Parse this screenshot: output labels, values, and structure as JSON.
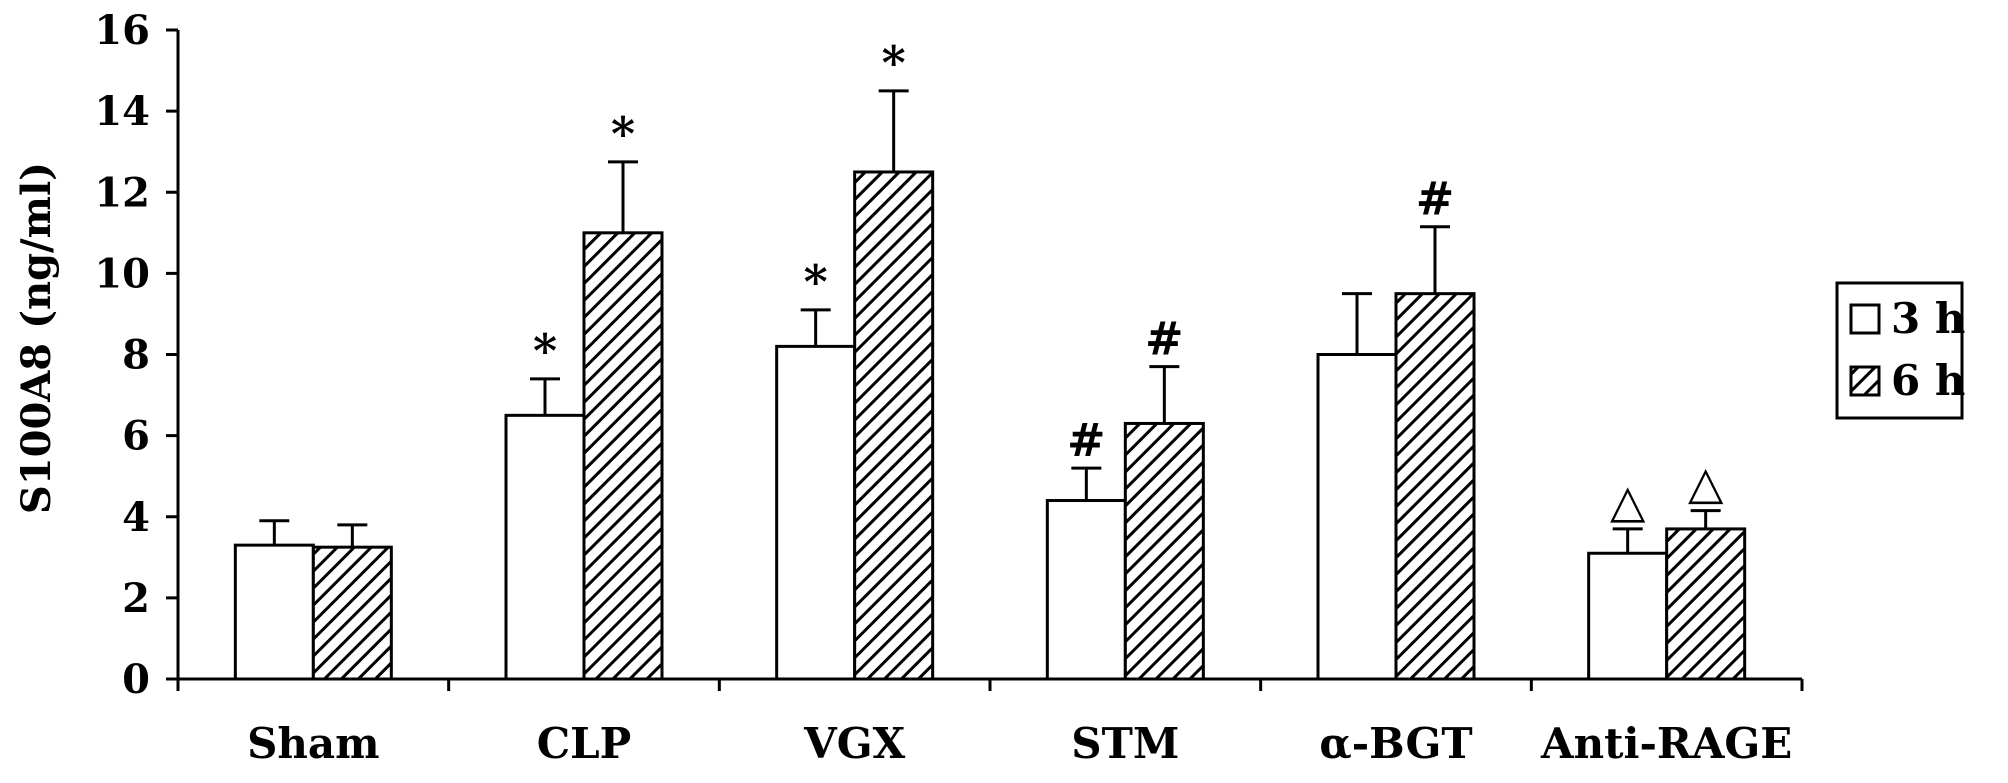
{
  "chart_data": {
    "type": "bar",
    "title": "",
    "xlabel": "",
    "ylabel": "S100A8 (ng/ml)",
    "ylim": [
      0,
      16
    ],
    "yticks": [
      0,
      2,
      4,
      6,
      8,
      10,
      12,
      14,
      16
    ],
    "grid": false,
    "legend_position": "right",
    "categories": [
      "Sham",
      "CLP",
      "VGX",
      "STM",
      "α-BGT",
      "Anti-RAGE"
    ],
    "series": [
      {
        "name": "3 h",
        "pattern": "open",
        "values": [
          3.3,
          6.5,
          8.2,
          4.4,
          8.0,
          3.1
        ],
        "errors": [
          0.6,
          0.9,
          0.9,
          0.8,
          1.5,
          0.6
        ],
        "annotations": [
          "",
          "*",
          "*",
          "#",
          "",
          "△"
        ]
      },
      {
        "name": "6 h",
        "pattern": "hatched",
        "values": [
          3.25,
          11.0,
          12.5,
          6.3,
          9.5,
          3.7
        ],
        "errors": [
          0.55,
          1.75,
          2.0,
          1.4,
          1.65,
          0.45
        ],
        "annotations": [
          "",
          "*",
          "*",
          "#",
          "#",
          "△"
        ]
      }
    ],
    "colors": {
      "bar_fill": "#ffffff",
      "stroke": "#000000",
      "hatch": "#000000"
    }
  }
}
